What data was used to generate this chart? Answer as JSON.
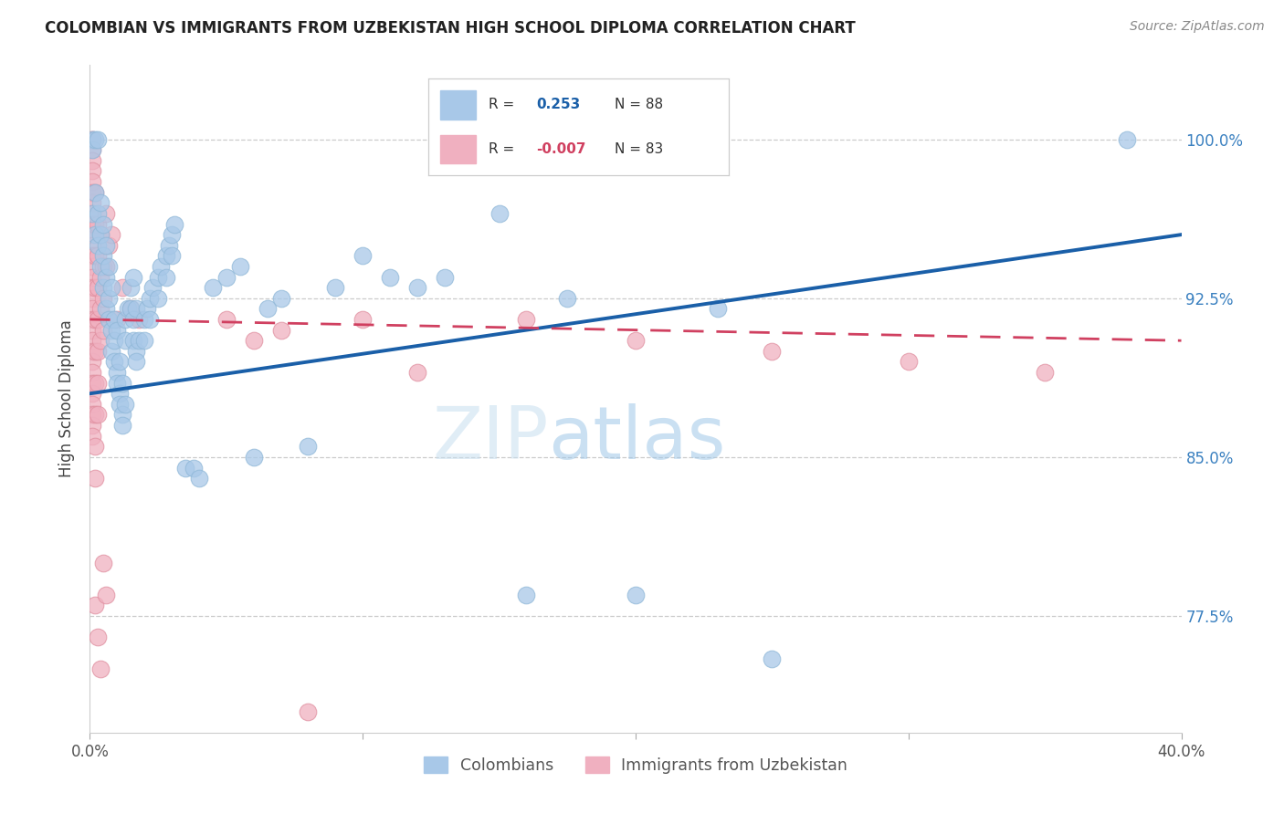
{
  "title": "COLOMBIAN VS IMMIGRANTS FROM UZBEKISTAN HIGH SCHOOL DIPLOMA CORRELATION CHART",
  "source": "Source: ZipAtlas.com",
  "ylabel": "High School Diploma",
  "yticks": [
    77.5,
    85.0,
    92.5,
    100.0
  ],
  "ytick_labels": [
    "77.5%",
    "85.0%",
    "92.5%",
    "100.0%"
  ],
  "xmin": 0.0,
  "xmax": 0.4,
  "ymin": 72.0,
  "ymax": 103.5,
  "legend_label_blue": "Colombians",
  "legend_label_pink": "Immigrants from Uzbekistan",
  "blue_color": "#a8c8e8",
  "pink_color": "#f0b0c0",
  "blue_edge_color": "#90b8d8",
  "pink_edge_color": "#e090a0",
  "blue_line_color": "#1a5fa8",
  "pink_line_color": "#d04060",
  "watermark": "ZIPatlas",
  "blue_scatter": [
    [
      0.001,
      100.0
    ],
    [
      0.001,
      99.5
    ],
    [
      0.002,
      100.0
    ],
    [
      0.003,
      100.0
    ],
    [
      0.001,
      96.5
    ],
    [
      0.002,
      97.5
    ],
    [
      0.002,
      95.5
    ],
    [
      0.003,
      96.5
    ],
    [
      0.004,
      97.0
    ],
    [
      0.003,
      95.0
    ],
    [
      0.004,
      95.5
    ],
    [
      0.005,
      96.0
    ],
    [
      0.004,
      94.0
    ],
    [
      0.005,
      94.5
    ],
    [
      0.006,
      95.0
    ],
    [
      0.005,
      93.0
    ],
    [
      0.006,
      93.5
    ],
    [
      0.007,
      94.0
    ],
    [
      0.006,
      92.0
    ],
    [
      0.007,
      92.5
    ],
    [
      0.008,
      93.0
    ],
    [
      0.007,
      91.5
    ],
    [
      0.008,
      91.0
    ],
    [
      0.009,
      91.5
    ],
    [
      0.008,
      90.0
    ],
    [
      0.009,
      90.5
    ],
    [
      0.01,
      91.0
    ],
    [
      0.009,
      89.5
    ],
    [
      0.01,
      89.0
    ],
    [
      0.011,
      89.5
    ],
    [
      0.01,
      88.5
    ],
    [
      0.011,
      88.0
    ],
    [
      0.012,
      88.5
    ],
    [
      0.011,
      87.5
    ],
    [
      0.012,
      87.0
    ],
    [
      0.013,
      87.5
    ],
    [
      0.012,
      86.5
    ],
    [
      0.013,
      91.5
    ],
    [
      0.014,
      92.0
    ],
    [
      0.013,
      90.5
    ],
    [
      0.015,
      93.0
    ],
    [
      0.016,
      93.5
    ],
    [
      0.015,
      92.0
    ],
    [
      0.016,
      91.5
    ],
    [
      0.017,
      92.0
    ],
    [
      0.016,
      90.5
    ],
    [
      0.017,
      90.0
    ],
    [
      0.018,
      90.5
    ],
    [
      0.017,
      89.5
    ],
    [
      0.02,
      91.5
    ],
    [
      0.021,
      92.0
    ],
    [
      0.02,
      90.5
    ],
    [
      0.022,
      92.5
    ],
    [
      0.023,
      93.0
    ],
    [
      0.022,
      91.5
    ],
    [
      0.025,
      93.5
    ],
    [
      0.026,
      94.0
    ],
    [
      0.025,
      92.5
    ],
    [
      0.028,
      94.5
    ],
    [
      0.029,
      95.0
    ],
    [
      0.028,
      93.5
    ],
    [
      0.03,
      95.5
    ],
    [
      0.031,
      96.0
    ],
    [
      0.03,
      94.5
    ],
    [
      0.035,
      84.5
    ],
    [
      0.038,
      84.5
    ],
    [
      0.04,
      84.0
    ],
    [
      0.045,
      93.0
    ],
    [
      0.05,
      93.5
    ],
    [
      0.055,
      94.0
    ],
    [
      0.06,
      85.0
    ],
    [
      0.065,
      92.0
    ],
    [
      0.07,
      92.5
    ],
    [
      0.08,
      85.5
    ],
    [
      0.09,
      93.0
    ],
    [
      0.1,
      94.5
    ],
    [
      0.11,
      93.5
    ],
    [
      0.12,
      93.0
    ],
    [
      0.13,
      93.5
    ],
    [
      0.15,
      96.5
    ],
    [
      0.16,
      78.5
    ],
    [
      0.175,
      92.5
    ],
    [
      0.2,
      78.5
    ],
    [
      0.23,
      92.0
    ],
    [
      0.25,
      75.5
    ],
    [
      0.38,
      100.0
    ]
  ],
  "pink_scatter": [
    [
      0.001,
      100.0
    ],
    [
      0.001,
      100.0
    ],
    [
      0.001,
      99.5
    ],
    [
      0.001,
      99.0
    ],
    [
      0.001,
      98.5
    ],
    [
      0.001,
      98.0
    ],
    [
      0.001,
      97.5
    ],
    [
      0.001,
      97.0
    ],
    [
      0.001,
      96.5
    ],
    [
      0.001,
      96.0
    ],
    [
      0.001,
      95.5
    ],
    [
      0.001,
      95.0
    ],
    [
      0.001,
      94.5
    ],
    [
      0.001,
      94.0
    ],
    [
      0.001,
      93.5
    ],
    [
      0.001,
      93.0
    ],
    [
      0.001,
      92.5
    ],
    [
      0.001,
      92.0
    ],
    [
      0.001,
      91.5
    ],
    [
      0.001,
      91.0
    ],
    [
      0.001,
      90.5
    ],
    [
      0.001,
      90.0
    ],
    [
      0.001,
      89.5
    ],
    [
      0.001,
      89.0
    ],
    [
      0.001,
      88.5
    ],
    [
      0.001,
      88.0
    ],
    [
      0.001,
      87.5
    ],
    [
      0.001,
      87.0
    ],
    [
      0.001,
      86.5
    ],
    [
      0.001,
      86.0
    ],
    [
      0.002,
      97.5
    ],
    [
      0.002,
      96.0
    ],
    [
      0.002,
      94.5
    ],
    [
      0.002,
      93.0
    ],
    [
      0.002,
      91.5
    ],
    [
      0.002,
      90.0
    ],
    [
      0.002,
      88.5
    ],
    [
      0.002,
      87.0
    ],
    [
      0.002,
      85.5
    ],
    [
      0.002,
      84.0
    ],
    [
      0.003,
      96.0
    ],
    [
      0.003,
      94.5
    ],
    [
      0.003,
      93.0
    ],
    [
      0.003,
      91.5
    ],
    [
      0.003,
      90.0
    ],
    [
      0.003,
      88.5
    ],
    [
      0.003,
      87.0
    ],
    [
      0.004,
      95.5
    ],
    [
      0.004,
      93.5
    ],
    [
      0.004,
      92.0
    ],
    [
      0.004,
      90.5
    ],
    [
      0.005,
      94.0
    ],
    [
      0.005,
      92.5
    ],
    [
      0.005,
      91.0
    ],
    [
      0.006,
      96.5
    ],
    [
      0.006,
      94.0
    ],
    [
      0.007,
      95.0
    ],
    [
      0.008,
      95.5
    ],
    [
      0.01,
      91.5
    ],
    [
      0.012,
      93.0
    ],
    [
      0.015,
      92.0
    ],
    [
      0.018,
      91.5
    ],
    [
      0.002,
      78.0
    ],
    [
      0.003,
      76.5
    ],
    [
      0.004,
      75.0
    ],
    [
      0.005,
      80.0
    ],
    [
      0.006,
      78.5
    ],
    [
      0.05,
      91.5
    ],
    [
      0.06,
      90.5
    ],
    [
      0.07,
      91.0
    ],
    [
      0.08,
      73.0
    ],
    [
      0.1,
      91.5
    ],
    [
      0.12,
      89.0
    ],
    [
      0.16,
      91.5
    ],
    [
      0.2,
      90.5
    ],
    [
      0.25,
      90.0
    ],
    [
      0.3,
      89.5
    ],
    [
      0.35,
      89.0
    ]
  ]
}
